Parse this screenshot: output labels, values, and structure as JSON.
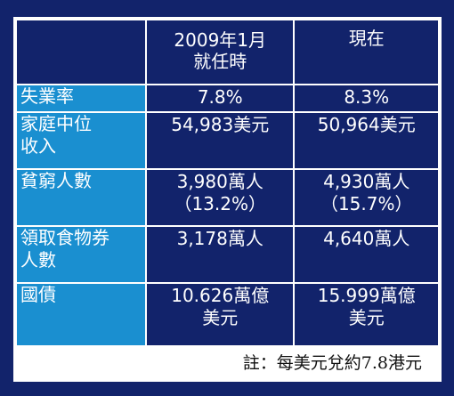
{
  "table": {
    "headers": [
      "2009年1月\n就任時",
      "現在"
    ],
    "rows": [
      {
        "label": [
          "失業率"
        ],
        "jan2009": [
          "7.8%"
        ],
        "now": [
          "8.3%"
        ]
      },
      {
        "label": [
          "家庭中位",
          "收入"
        ],
        "jan2009": [
          "54,983美元"
        ],
        "now": [
          "50,964美元"
        ]
      },
      {
        "label": [
          "貧窮人數"
        ],
        "jan2009": [
          "3,980萬人",
          "（13.2%）"
        ],
        "now": [
          "4,930萬人",
          "（15.7%）"
        ]
      },
      {
        "label": [
          "領取食物券",
          "人數"
        ],
        "jan2009": [
          "3,178萬人"
        ],
        "now": [
          "4,640萬人"
        ]
      },
      {
        "label": [
          "國債"
        ],
        "jan2009": [
          "10.626萬億",
          "美元"
        ],
        "now": [
          "15.999萬億",
          "美元"
        ]
      }
    ]
  },
  "header": {
    "col1_line1": "2009年1月",
    "col1_line2": "就任時",
    "col2": "現在"
  },
  "note": "註：每美元兌約7.8港元",
  "colors": {
    "background": "#12236b",
    "label_cell": "#1a8fd0",
    "border": "#ffffff",
    "note_bg": "#ffffff"
  }
}
